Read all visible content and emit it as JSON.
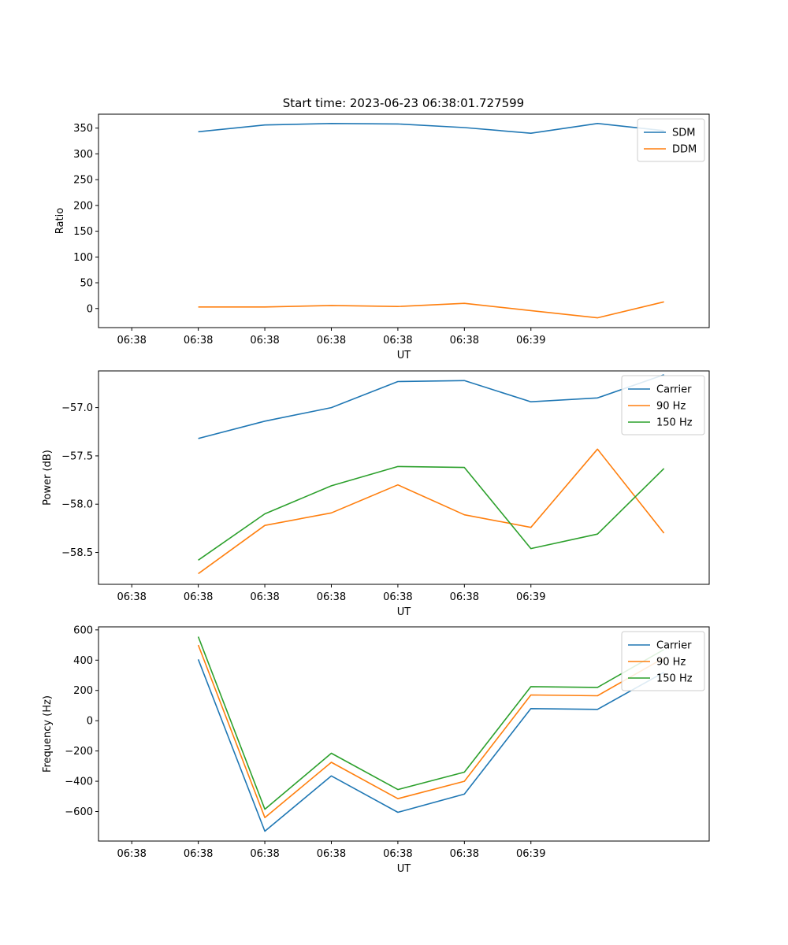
{
  "figure": {
    "title": "Start time: 2023-06-23 06:38:01.727599"
  },
  "chart_data": [
    {
      "type": "line",
      "title": "Start time: 2023-06-23 06:38:01.727599",
      "xlabel": "UT",
      "ylabel": "Ratio",
      "x_tick_labels": [
        "06:38",
        "06:38",
        "06:38",
        "06:38",
        "06:38",
        "06:38",
        "06:39"
      ],
      "x": [
        1,
        2,
        3,
        4,
        5,
        6,
        7,
        8
      ],
      "xlim": [
        -0.5,
        8.68
      ],
      "ylim": [
        -37,
        377
      ],
      "y_ticks": [
        0,
        50,
        100,
        150,
        200,
        250,
        300,
        350
      ],
      "legend_position": "upper right",
      "series": [
        {
          "name": "SDM",
          "color": "#1f77b4",
          "values": [
            343,
            356,
            359,
            358,
            351,
            340,
            359,
            345
          ]
        },
        {
          "name": "DDM",
          "color": "#ff7f0e",
          "values": [
            3,
            3,
            6,
            4,
            10,
            -4,
            -18,
            13
          ]
        }
      ]
    },
    {
      "type": "line",
      "title": "",
      "xlabel": "UT",
      "ylabel": "Power (dB)",
      "x_tick_labels": [
        "06:38",
        "06:38",
        "06:38",
        "06:38",
        "06:38",
        "06:38",
        "06:39"
      ],
      "x": [
        1,
        2,
        3,
        4,
        5,
        6,
        7,
        8
      ],
      "xlim": [
        -0.5,
        8.68
      ],
      "ylim": [
        -58.83,
        -56.62
      ],
      "y_ticks": [
        -58.5,
        -58.0,
        -57.5,
        -57.0
      ],
      "y_tick_labels": [
        "−58.5",
        "−58.0",
        "−57.5",
        "−57.0"
      ],
      "legend_position": "upper right",
      "series": [
        {
          "name": "Carrier",
          "color": "#1f77b4",
          "values": [
            -57.32,
            -57.14,
            -57.0,
            -56.73,
            -56.72,
            -56.94,
            -56.9,
            -56.66
          ]
        },
        {
          "name": "90 Hz",
          "color": "#ff7f0e",
          "values": [
            -58.72,
            -58.22,
            -58.09,
            -57.8,
            -58.11,
            -58.24,
            -57.43,
            -58.3
          ]
        },
        {
          "name": "150 Hz",
          "color": "#2ca02c",
          "values": [
            -58.58,
            -58.1,
            -57.81,
            -57.61,
            -57.62,
            -58.46,
            -58.31,
            -57.63
          ]
        }
      ]
    },
    {
      "type": "line",
      "title": "",
      "xlabel": "UT",
      "ylabel": "Frequency (Hz)",
      "x_tick_labels": [
        "06:38",
        "06:38",
        "06:38",
        "06:38",
        "06:38",
        "06:38",
        "06:39"
      ],
      "x": [
        1,
        2,
        3,
        4,
        5,
        6,
        7,
        8
      ],
      "xlim": [
        -0.5,
        8.68
      ],
      "ylim": [
        -795,
        620
      ],
      "y_ticks": [
        -600,
        -400,
        -200,
        0,
        200,
        400,
        600
      ],
      "y_tick_labels": [
        "−600",
        "−400",
        "−200",
        "0",
        "200",
        "400",
        "600"
      ],
      "legend_position": "upper right",
      "series": [
        {
          "name": "Carrier",
          "color": "#1f77b4",
          "values": [
            405,
            -730,
            -365,
            -605,
            -485,
            80,
            75,
            320
          ]
        },
        {
          "name": "90 Hz",
          "color": "#ff7f0e",
          "values": [
            500,
            -640,
            -275,
            -515,
            -400,
            170,
            165,
            415
          ]
        },
        {
          "name": "150 Hz",
          "color": "#2ca02c",
          "values": [
            555,
            -585,
            -215,
            -455,
            -340,
            225,
            220,
            470
          ]
        }
      ]
    }
  ]
}
